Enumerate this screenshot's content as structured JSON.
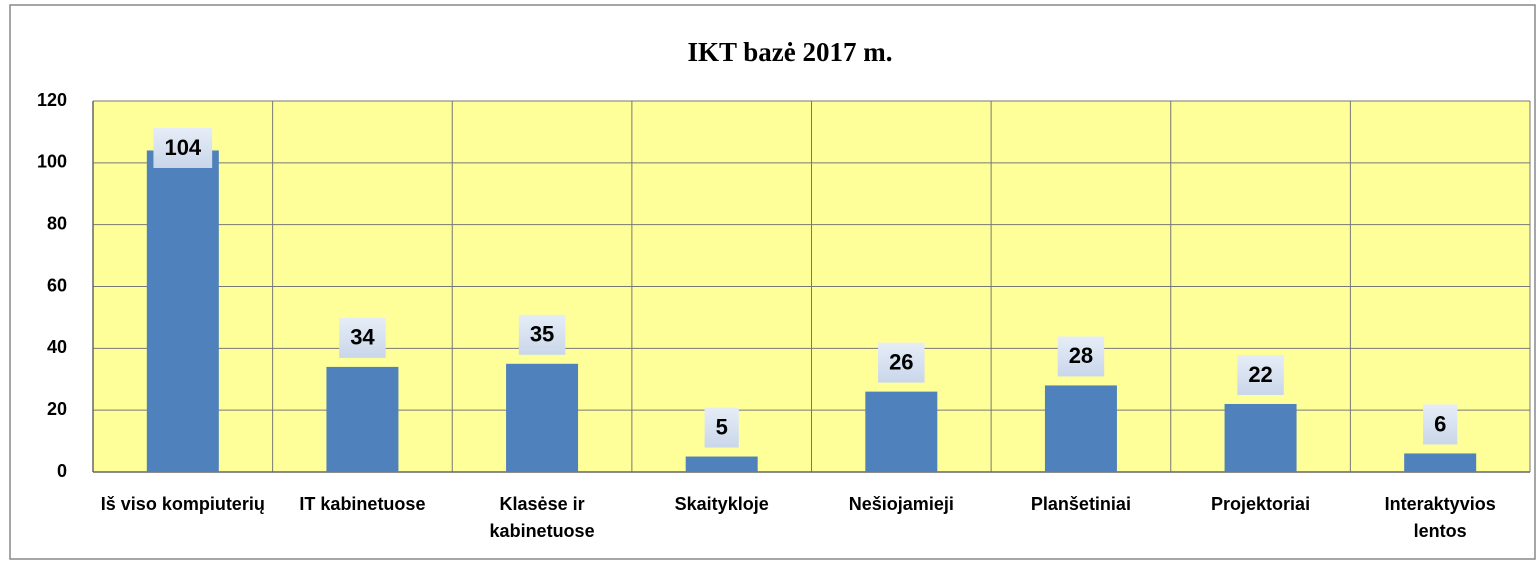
{
  "chart_data": {
    "type": "bar",
    "title": "IKT bazė 2017 m.",
    "categories": [
      "Iš viso kompiuterių",
      "IT kabinetuose",
      "Klasėse ir kabinetuose",
      "Skaitykloje",
      "Nešiojamieji",
      "Planšetiniai",
      "Projektoriai",
      "Interaktyvios lentos"
    ],
    "values": [
      104,
      34,
      35,
      5,
      26,
      28,
      22,
      6
    ],
    "color": "#4f81bd",
    "ylim": [
      0,
      120
    ],
    "yticks": [
      0,
      20,
      40,
      60,
      80,
      100,
      120
    ],
    "grid": true
  }
}
